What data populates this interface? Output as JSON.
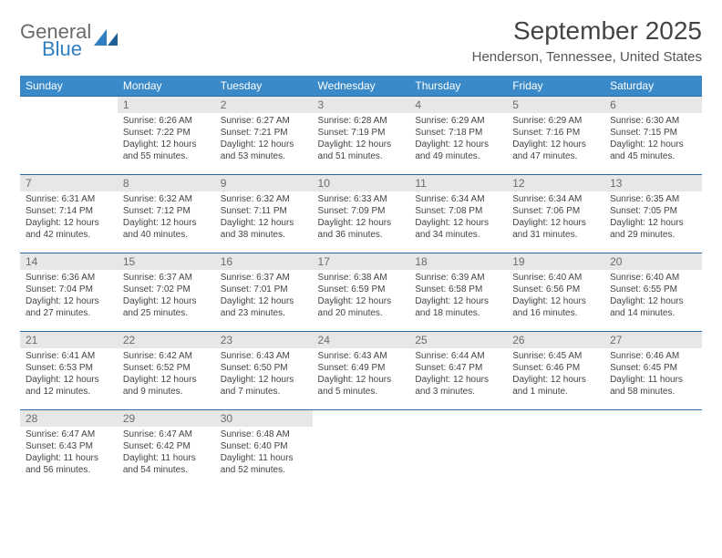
{
  "brand": {
    "word1": "General",
    "word2": "Blue"
  },
  "title": "September 2025",
  "location": "Henderson, Tennessee, United States",
  "header_color": "#3a8ac9",
  "border_color": "#2b6aa0",
  "daynum_bg": "#e7e7e7",
  "text_color": "#444444",
  "day_headers": [
    "Sunday",
    "Monday",
    "Tuesday",
    "Wednesday",
    "Thursday",
    "Friday",
    "Saturday"
  ],
  "cells": [
    {
      "day": "",
      "sunrise": "",
      "sunset": "",
      "daylight": ""
    },
    {
      "day": "1",
      "sunrise": "Sunrise: 6:26 AM",
      "sunset": "Sunset: 7:22 PM",
      "daylight": "Daylight: 12 hours and 55 minutes."
    },
    {
      "day": "2",
      "sunrise": "Sunrise: 6:27 AM",
      "sunset": "Sunset: 7:21 PM",
      "daylight": "Daylight: 12 hours and 53 minutes."
    },
    {
      "day": "3",
      "sunrise": "Sunrise: 6:28 AM",
      "sunset": "Sunset: 7:19 PM",
      "daylight": "Daylight: 12 hours and 51 minutes."
    },
    {
      "day": "4",
      "sunrise": "Sunrise: 6:29 AM",
      "sunset": "Sunset: 7:18 PM",
      "daylight": "Daylight: 12 hours and 49 minutes."
    },
    {
      "day": "5",
      "sunrise": "Sunrise: 6:29 AM",
      "sunset": "Sunset: 7:16 PM",
      "daylight": "Daylight: 12 hours and 47 minutes."
    },
    {
      "day": "6",
      "sunrise": "Sunrise: 6:30 AM",
      "sunset": "Sunset: 7:15 PM",
      "daylight": "Daylight: 12 hours and 45 minutes."
    },
    {
      "day": "7",
      "sunrise": "Sunrise: 6:31 AM",
      "sunset": "Sunset: 7:14 PM",
      "daylight": "Daylight: 12 hours and 42 minutes."
    },
    {
      "day": "8",
      "sunrise": "Sunrise: 6:32 AM",
      "sunset": "Sunset: 7:12 PM",
      "daylight": "Daylight: 12 hours and 40 minutes."
    },
    {
      "day": "9",
      "sunrise": "Sunrise: 6:32 AM",
      "sunset": "Sunset: 7:11 PM",
      "daylight": "Daylight: 12 hours and 38 minutes."
    },
    {
      "day": "10",
      "sunrise": "Sunrise: 6:33 AM",
      "sunset": "Sunset: 7:09 PM",
      "daylight": "Daylight: 12 hours and 36 minutes."
    },
    {
      "day": "11",
      "sunrise": "Sunrise: 6:34 AM",
      "sunset": "Sunset: 7:08 PM",
      "daylight": "Daylight: 12 hours and 34 minutes."
    },
    {
      "day": "12",
      "sunrise": "Sunrise: 6:34 AM",
      "sunset": "Sunset: 7:06 PM",
      "daylight": "Daylight: 12 hours and 31 minutes."
    },
    {
      "day": "13",
      "sunrise": "Sunrise: 6:35 AM",
      "sunset": "Sunset: 7:05 PM",
      "daylight": "Daylight: 12 hours and 29 minutes."
    },
    {
      "day": "14",
      "sunrise": "Sunrise: 6:36 AM",
      "sunset": "Sunset: 7:04 PM",
      "daylight": "Daylight: 12 hours and 27 minutes."
    },
    {
      "day": "15",
      "sunrise": "Sunrise: 6:37 AM",
      "sunset": "Sunset: 7:02 PM",
      "daylight": "Daylight: 12 hours and 25 minutes."
    },
    {
      "day": "16",
      "sunrise": "Sunrise: 6:37 AM",
      "sunset": "Sunset: 7:01 PM",
      "daylight": "Daylight: 12 hours and 23 minutes."
    },
    {
      "day": "17",
      "sunrise": "Sunrise: 6:38 AM",
      "sunset": "Sunset: 6:59 PM",
      "daylight": "Daylight: 12 hours and 20 minutes."
    },
    {
      "day": "18",
      "sunrise": "Sunrise: 6:39 AM",
      "sunset": "Sunset: 6:58 PM",
      "daylight": "Daylight: 12 hours and 18 minutes."
    },
    {
      "day": "19",
      "sunrise": "Sunrise: 6:40 AM",
      "sunset": "Sunset: 6:56 PM",
      "daylight": "Daylight: 12 hours and 16 minutes."
    },
    {
      "day": "20",
      "sunrise": "Sunrise: 6:40 AM",
      "sunset": "Sunset: 6:55 PM",
      "daylight": "Daylight: 12 hours and 14 minutes."
    },
    {
      "day": "21",
      "sunrise": "Sunrise: 6:41 AM",
      "sunset": "Sunset: 6:53 PM",
      "daylight": "Daylight: 12 hours and 12 minutes."
    },
    {
      "day": "22",
      "sunrise": "Sunrise: 6:42 AM",
      "sunset": "Sunset: 6:52 PM",
      "daylight": "Daylight: 12 hours and 9 minutes."
    },
    {
      "day": "23",
      "sunrise": "Sunrise: 6:43 AM",
      "sunset": "Sunset: 6:50 PM",
      "daylight": "Daylight: 12 hours and 7 minutes."
    },
    {
      "day": "24",
      "sunrise": "Sunrise: 6:43 AM",
      "sunset": "Sunset: 6:49 PM",
      "daylight": "Daylight: 12 hours and 5 minutes."
    },
    {
      "day": "25",
      "sunrise": "Sunrise: 6:44 AM",
      "sunset": "Sunset: 6:47 PM",
      "daylight": "Daylight: 12 hours and 3 minutes."
    },
    {
      "day": "26",
      "sunrise": "Sunrise: 6:45 AM",
      "sunset": "Sunset: 6:46 PM",
      "daylight": "Daylight: 12 hours and 1 minute."
    },
    {
      "day": "27",
      "sunrise": "Sunrise: 6:46 AM",
      "sunset": "Sunset: 6:45 PM",
      "daylight": "Daylight: 11 hours and 58 minutes."
    },
    {
      "day": "28",
      "sunrise": "Sunrise: 6:47 AM",
      "sunset": "Sunset: 6:43 PM",
      "daylight": "Daylight: 11 hours and 56 minutes."
    },
    {
      "day": "29",
      "sunrise": "Sunrise: 6:47 AM",
      "sunset": "Sunset: 6:42 PM",
      "daylight": "Daylight: 11 hours and 54 minutes."
    },
    {
      "day": "30",
      "sunrise": "Sunrise: 6:48 AM",
      "sunset": "Sunset: 6:40 PM",
      "daylight": "Daylight: 11 hours and 52 minutes."
    },
    {
      "day": "",
      "sunrise": "",
      "sunset": "",
      "daylight": ""
    },
    {
      "day": "",
      "sunrise": "",
      "sunset": "",
      "daylight": ""
    },
    {
      "day": "",
      "sunrise": "",
      "sunset": "",
      "daylight": ""
    },
    {
      "day": "",
      "sunrise": "",
      "sunset": "",
      "daylight": ""
    }
  ]
}
